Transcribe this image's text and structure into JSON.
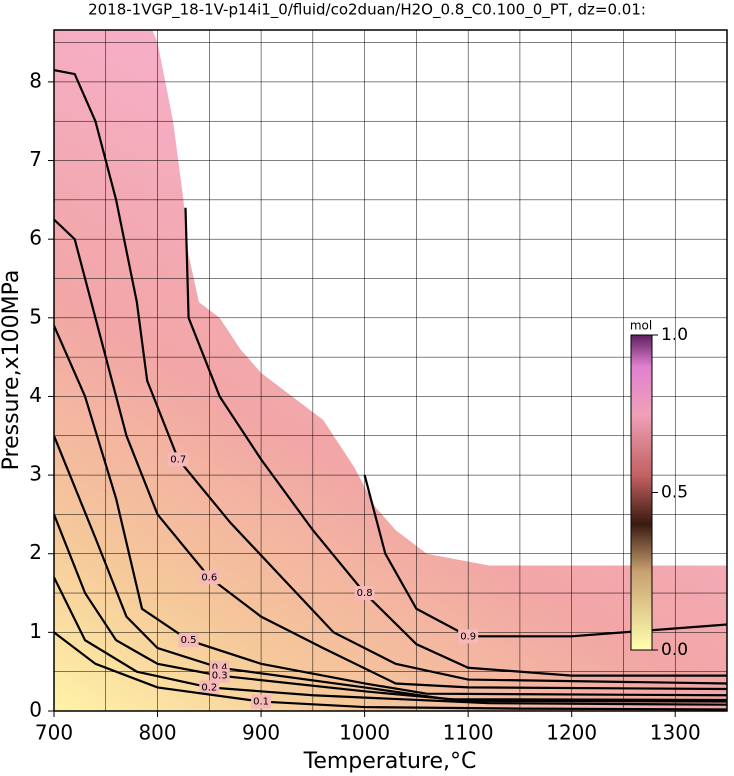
{
  "chart_data": {
    "type": "contour",
    "title": "2018-1VGP_18-1V-p14i1_0/fluid/co2duan/H2O_0.8_C0.100_0_PT, dz=0.01:",
    "x_label": "Temperature,°C",
    "y_label": "Pressure,x100MPa",
    "xlim": [
      700,
      1350
    ],
    "ylim": [
      0,
      8.66
    ],
    "xticks": [
      700,
      800,
      900,
      1000,
      1100,
      1200,
      1300
    ],
    "yticks": [
      0,
      1,
      2,
      3,
      4,
      5,
      6,
      7,
      8
    ],
    "xminor": [
      750,
      850,
      950,
      1050,
      1150,
      1250,
      1350
    ],
    "yminor": [
      0.5,
      1.5,
      2.5,
      3.5,
      4.5,
      5.5,
      6.5,
      7.5,
      8.5
    ],
    "grid": true,
    "field_boundary": {
      "x": [
        700,
        795,
        800,
        815,
        825,
        830,
        840,
        860,
        880,
        900,
        930,
        960,
        990,
        1010,
        1030,
        1060,
        1120,
        1200,
        1350,
        1350,
        700
      ],
      "y": [
        8.66,
        8.66,
        8.5,
        7.5,
        6.5,
        5.8,
        5.2,
        5.0,
        4.6,
        4.3,
        4.0,
        3.7,
        3.1,
        2.6,
        2.3,
        2.0,
        1.85,
        1.85,
        1.85,
        0,
        0
      ]
    },
    "contours": [
      {
        "level": 0.9,
        "x": [
          1000,
          1020,
          1050,
          1100,
          1200,
          1350
        ],
        "y": [
          3.0,
          2.0,
          1.3,
          0.95,
          0.95,
          1.1
        ]
      },
      {
        "level": 0.8,
        "x": [
          827,
          830,
          860,
          900,
          950,
          1000,
          1050,
          1100,
          1200,
          1350
        ],
        "y": [
          6.4,
          5.0,
          4.0,
          3.2,
          2.3,
          1.5,
          0.85,
          0.55,
          0.45,
          0.45
        ]
      },
      {
        "level": 0.7,
        "x": [
          700,
          720,
          740,
          760,
          780,
          790,
          820,
          870,
          920,
          970,
          1030,
          1100,
          1350
        ],
        "y": [
          8.15,
          8.1,
          7.5,
          6.5,
          5.2,
          4.2,
          3.2,
          2.4,
          1.7,
          1.0,
          0.6,
          0.4,
          0.35
        ]
      },
      {
        "level": 0.6,
        "x": [
          700,
          720,
          750,
          770,
          800,
          850,
          900,
          960,
          1030,
          1100,
          1350
        ],
        "y": [
          6.25,
          6.0,
          4.5,
          3.5,
          2.5,
          1.7,
          1.2,
          0.8,
          0.35,
          0.3,
          0.28
        ]
      },
      {
        "level": 0.5,
        "x": [
          700,
          730,
          760,
          785,
          830,
          900,
          1000,
          1060,
          1350
        ],
        "y": [
          4.9,
          4.0,
          2.7,
          1.3,
          0.9,
          0.6,
          0.35,
          0.22,
          0.2
        ]
      },
      {
        "level": 0.4,
        "x": [
          700,
          740,
          770,
          800,
          860,
          1000,
          1080,
          1350
        ],
        "y": [
          3.5,
          2.2,
          1.2,
          0.8,
          0.55,
          0.3,
          0.15,
          0.14
        ]
      },
      {
        "level": 0.3,
        "x": [
          700,
          730,
          760,
          800,
          860,
          1000,
          1100,
          1350
        ],
        "y": [
          2.5,
          1.5,
          0.9,
          0.6,
          0.45,
          0.25,
          0.13,
          0.12
        ]
      },
      {
        "level": 0.2,
        "x": [
          700,
          730,
          780,
          850,
          950,
          1120,
          1350
        ],
        "y": [
          1.7,
          0.9,
          0.5,
          0.3,
          0.2,
          0.1,
          0.08
        ]
      },
      {
        "level": 0.1,
        "x": [
          700,
          740,
          800,
          900,
          1000,
          1150,
          1350
        ],
        "y": [
          1.0,
          0.6,
          0.3,
          0.12,
          0.05,
          0.03,
          0.02
        ]
      }
    ],
    "colorbar": {
      "label": "mol",
      "lim": [
        0,
        1
      ],
      "ticks": [
        {
          "value": 0,
          "label": "0.0"
        },
        {
          "value": 0.5,
          "label": "0.5"
        },
        {
          "value": 1,
          "label": "1.0"
        }
      ]
    }
  }
}
